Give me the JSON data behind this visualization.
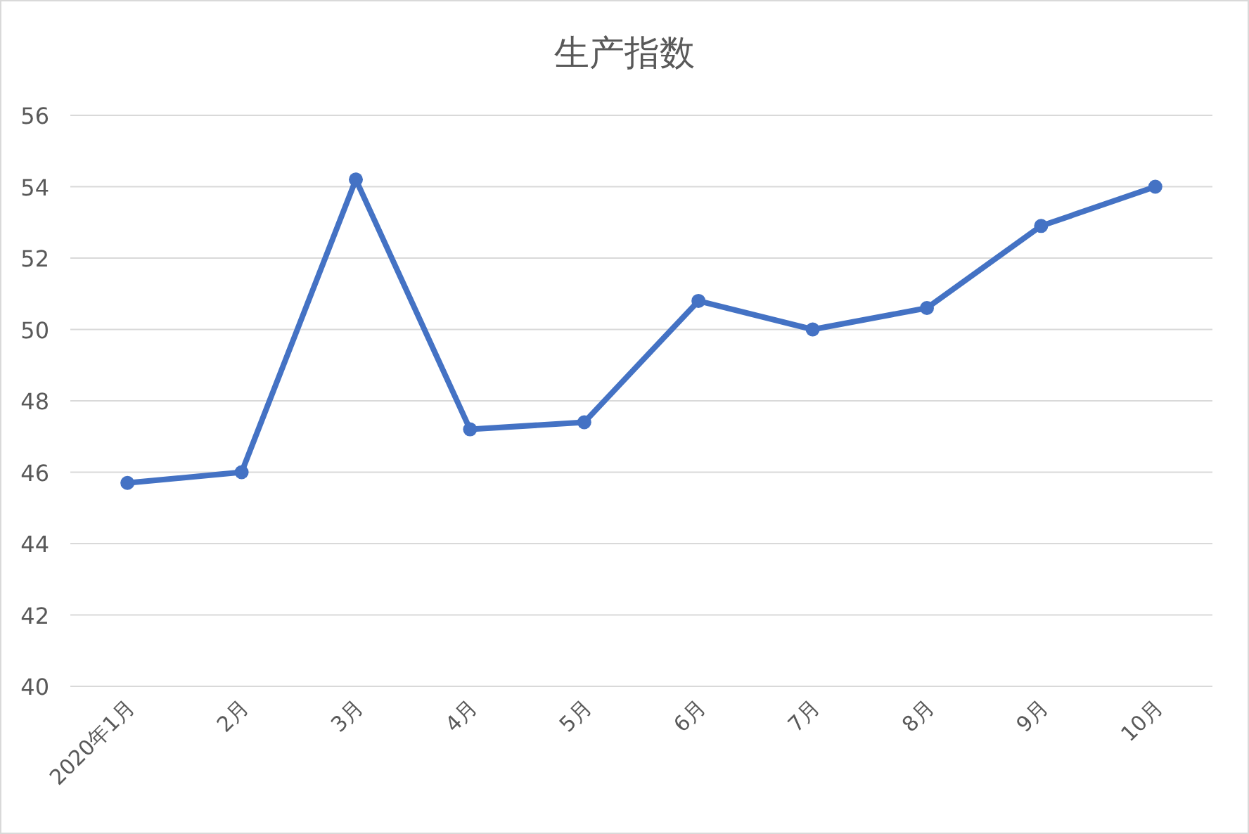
{
  "chart_data": {
    "type": "line",
    "title": "生产指数",
    "categories": [
      "2020年1月",
      "2月",
      "3月",
      "4月",
      "5月",
      "6月",
      "7月",
      "8月",
      "9月",
      "10月"
    ],
    "series": [
      {
        "color": "#4472c4",
        "values": [
          45.7,
          46.0,
          54.2,
          47.2,
          47.4,
          50.8,
          50.0,
          50.6,
          52.9,
          54.0
        ]
      }
    ],
    "ylim": [
      40,
      56
    ],
    "yticks": [
      40,
      42,
      44,
      46,
      48,
      50,
      52,
      54,
      56
    ],
    "grid": "y",
    "marker": "circle",
    "line_style": "solid"
  }
}
